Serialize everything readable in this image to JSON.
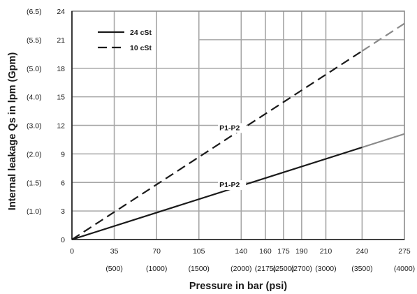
{
  "chart_data": {
    "type": "line",
    "xlabel": "Pressure in bar (psi)",
    "ylabel": "Internal leakage Qs in lpm (Gpm)",
    "xlim": [
      0,
      275
    ],
    "ylim": [
      0,
      24
    ],
    "x_ticks": [
      {
        "value": 0,
        "bar": "0",
        "psi": ""
      },
      {
        "value": 35,
        "bar": "35",
        "psi": "(500)"
      },
      {
        "value": 70,
        "bar": "70",
        "psi": "(1000)"
      },
      {
        "value": 105,
        "bar": "105",
        "psi": "(1500)"
      },
      {
        "value": 140,
        "bar": "140",
        "psi": "(2000)"
      },
      {
        "value": 160,
        "bar": "160",
        "psi": "(2175)"
      },
      {
        "value": 175,
        "bar": "175",
        "psi": "(2500)"
      },
      {
        "value": 190,
        "bar": "190",
        "psi": "(2700)"
      },
      {
        "value": 210,
        "bar": "210",
        "psi": "(3000)"
      },
      {
        "value": 240,
        "bar": "240",
        "psi": "(3500)"
      },
      {
        "value": 275,
        "bar": "275",
        "psi": "(4000)"
      }
    ],
    "y_ticks": [
      {
        "value": 0,
        "lpm": "0",
        "gpm": ""
      },
      {
        "value": 3,
        "lpm": "3",
        "gpm": "(1.0)"
      },
      {
        "value": 6,
        "lpm": "6",
        "gpm": "(1.5)"
      },
      {
        "value": 9,
        "lpm": "9",
        "gpm": "(2.0)"
      },
      {
        "value": 12,
        "lpm": "12",
        "gpm": "(3.0)"
      },
      {
        "value": 15,
        "lpm": "15",
        "gpm": "(4.0)"
      },
      {
        "value": 18,
        "lpm": "18",
        "gpm": "(5.0)"
      },
      {
        "value": 21,
        "lpm": "21",
        "gpm": "(5.5)"
      },
      {
        "value": 24,
        "lpm": "24",
        "gpm": "(6.5)"
      }
    ],
    "series": [
      {
        "name": "24 cSt",
        "style": "solid",
        "color": "#1a1a1a",
        "extrapolated_color": "#8a8a8a",
        "extrapolated_from": 240,
        "x": [
          0,
          275
        ],
        "y": [
          0,
          11.1
        ]
      },
      {
        "name": "10 cSt",
        "style": "dashed",
        "color": "#1a1a1a",
        "extrapolated_color": "#8a8a8a",
        "extrapolated_from": 240,
        "x": [
          0,
          275
        ],
        "y": [
          0,
          22.7
        ]
      }
    ],
    "annotations": [
      {
        "text": "P1-P2",
        "x": 122,
        "y": 11.5
      },
      {
        "text": "P1-P2",
        "x": 122,
        "y": 5.5
      }
    ],
    "legend": {
      "position": "top-left"
    },
    "grid": true
  }
}
